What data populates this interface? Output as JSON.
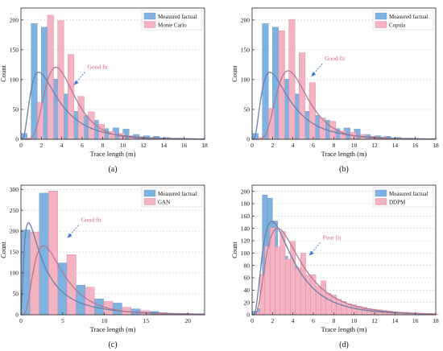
{
  "colors": {
    "measured": "#7fb2e0",
    "measured_stroke": "#5f93c6",
    "generated": "#f4b3c2",
    "generated_stroke": "#df8198",
    "fit_measured": "#6b7fa8",
    "fit_generated": "#b17a93",
    "annotation_arrow": "#3f78cf",
    "annotation_good": "#e0607a",
    "annotation_poor": "#e0607a",
    "grid": "#c8c8c8",
    "axis": "#222222"
  },
  "chart_data": [
    {
      "type": "bar",
      "panel": "(a)",
      "xlabel": "Trace length (m)",
      "ylabel": "Count",
      "xlim": [
        0,
        18
      ],
      "ylim": [
        0,
        220
      ],
      "xticks": [
        "0",
        "2",
        "4",
        "6",
        "8",
        "10",
        "12",
        "14",
        "16",
        "18"
      ],
      "yticks": [
        "0",
        "50",
        "100",
        "150",
        "200"
      ],
      "grid": "horizontal dashed",
      "legend_position": "top-right",
      "annotation": {
        "text": "Good fit",
        "x": 6.2,
        "y": 118
      },
      "bin_width": 0.6,
      "series": [
        {
          "name": "Measured factual",
          "x": [
            0.3,
            1.3,
            2.3,
            3.3,
            4.3,
            5.3,
            6.3,
            7.3,
            8.3,
            9.3,
            10.3,
            11.3,
            12.3,
            13.3,
            14.3,
            15.3,
            16.3,
            17.3
          ],
          "values": [
            10,
            194,
            188,
            101,
            76,
            47,
            40,
            32,
            18,
            19,
            17,
            8,
            6,
            5,
            3,
            2,
            1,
            1
          ]
        },
        {
          "name": "Monte Carlo",
          "x": [
            0.9,
            1.9,
            2.9,
            3.9,
            4.9,
            5.9,
            6.9,
            7.9,
            8.9,
            9.9,
            10.9,
            11.9,
            12.9,
            13.9,
            14.9,
            15.9,
            16.9,
            17.9
          ],
          "values": [
            2,
            62,
            208,
            199,
            142,
            72,
            46,
            25,
            13,
            10,
            6,
            4,
            3,
            2,
            1,
            1,
            1,
            0
          ]
        }
      ]
    },
    {
      "type": "bar",
      "panel": "(b)",
      "xlabel": "Trace length (m)",
      "ylabel": "Count",
      "xlim": [
        0,
        18
      ],
      "ylim": [
        0,
        220
      ],
      "xticks": [
        "0",
        "2",
        "4",
        "6",
        "8",
        "10",
        "12",
        "14",
        "16",
        "18"
      ],
      "yticks": [
        "0",
        "50",
        "100",
        "150",
        "200"
      ],
      "grid": "horizontal dashed",
      "legend_position": "top-right",
      "annotation": {
        "text": "Good fit",
        "x": 6.8,
        "y": 132
      },
      "bin_width": 0.6,
      "series": [
        {
          "name": "Measured factual",
          "x": [
            0.3,
            1.3,
            2.3,
            3.3,
            4.3,
            5.3,
            6.3,
            7.3,
            8.3,
            9.3,
            10.3,
            11.3,
            12.3,
            13.3,
            14.3,
            15.3,
            16.3,
            17.3
          ],
          "values": [
            10,
            194,
            188,
            101,
            76,
            47,
            40,
            32,
            18,
            19,
            17,
            8,
            6,
            5,
            3,
            2,
            1,
            1
          ]
        },
        {
          "name": "Copula",
          "x": [
            0.9,
            1.9,
            2.9,
            3.9,
            4.9,
            5.9,
            6.9,
            7.9,
            8.9,
            9.9,
            10.9,
            11.9,
            12.9,
            13.9,
            14.9,
            15.9,
            16.9,
            17.9
          ],
          "values": [
            3,
            52,
            182,
            201,
            145,
            95,
            36,
            30,
            14,
            12,
            8,
            5,
            4,
            2,
            1,
            1,
            1,
            0
          ]
        }
      ]
    },
    {
      "type": "bar",
      "panel": "(c)",
      "xlabel": "Trace length (m)",
      "ylabel": "Count",
      "xlim": [
        0,
        22
      ],
      "ylim": [
        0,
        310
      ],
      "xticks": [
        "0",
        "5",
        "10",
        "15",
        "20"
      ],
      "yticks": [
        "0",
        "50",
        "100",
        "150",
        "200",
        "250",
        "300"
      ],
      "grid": "horizontal dashed",
      "legend_position": "top-right",
      "annotation": {
        "text": "Good fit",
        "x": 6.8,
        "y": 222
      },
      "bin_width": 1.1,
      "series": [
        {
          "name": "Measured factual",
          "x": [
            0.55,
            2.75,
            4.95,
            7.15,
            9.35,
            11.55,
            13.75,
            15.95,
            18.15,
            20.35
          ],
          "values": [
            203,
            291,
            124,
            71,
            38,
            28,
            14,
            8,
            3,
            1
          ]
        },
        {
          "name": "GAN",
          "x": [
            1.65,
            3.85,
            6.05,
            8.25,
            10.45,
            12.65,
            14.85,
            17.05,
            19.25,
            21.45
          ],
          "values": [
            198,
            296,
            144,
            66,
            32,
            18,
            10,
            5,
            2,
            1
          ]
        }
      ]
    },
    {
      "type": "bar",
      "panel": "(d)",
      "xlabel": "Trace length (m)",
      "ylabel": "Count",
      "xlim": [
        0,
        18
      ],
      "ylim": [
        0,
        210
      ],
      "xticks": [
        "0",
        "2",
        "4",
        "6",
        "8",
        "10",
        "12",
        "14",
        "16",
        "18"
      ],
      "yticks": [
        "0",
        "20",
        "40",
        "60",
        "80",
        "100",
        "120",
        "140",
        "160",
        "180",
        "200"
      ],
      "grid": "horizontal dashed",
      "legend_position": "top-right",
      "annotation": {
        "text": "Poor fit",
        "x": 6.6,
        "y": 122
      },
      "bin_width": 0.5,
      "series": [
        {
          "name": "Measured factual",
          "x": [
            0.25,
            0.75,
            1.25,
            1.75,
            2.25,
            2.75,
            3.25,
            3.75,
            4.25,
            4.75,
            5.25,
            5.75,
            6.25,
            6.75,
            7.25,
            7.75,
            8.25,
            8.75,
            9.25,
            9.75,
            10.25,
            10.75,
            11.25,
            11.75,
            12.25,
            12.75,
            13.25,
            13.75,
            14.25,
            14.75,
            15.25,
            15.75,
            16.25,
            16.75,
            17.25,
            17.75
          ],
          "values": [
            6,
            10,
            194,
            189,
            152,
            100,
            95,
            78,
            78,
            62,
            47,
            45,
            40,
            32,
            30,
            25,
            22,
            18,
            17,
            15,
            13,
            12,
            10,
            9,
            8,
            7,
            6,
            5,
            4,
            3,
            3,
            2,
            2,
            1,
            1,
            1
          ]
        },
        {
          "name": "DDPM",
          "x": [
            0.5,
            1.0,
            1.5,
            2.0,
            2.5,
            3.0,
            3.5,
            4.0,
            4.5,
            5.0,
            5.5,
            6.0,
            6.5,
            7.0,
            7.5,
            8.0,
            8.5,
            9.0,
            9.5,
            10.0,
            10.5,
            11.0,
            11.5,
            12.0,
            12.5,
            13.0,
            13.5,
            14.0,
            14.5,
            15.0,
            15.5,
            16.0,
            16.5,
            17.0,
            17.5,
            18.0
          ],
          "values": [
            4,
            65,
            111,
            141,
            110,
            135,
            90,
            119,
            76,
            100,
            64,
            65,
            46,
            55,
            35,
            32,
            25,
            22,
            18,
            16,
            14,
            12,
            10,
            9,
            8,
            7,
            6,
            5,
            4,
            4,
            3,
            2,
            2,
            1,
            1,
            1
          ]
        }
      ]
    }
  ]
}
